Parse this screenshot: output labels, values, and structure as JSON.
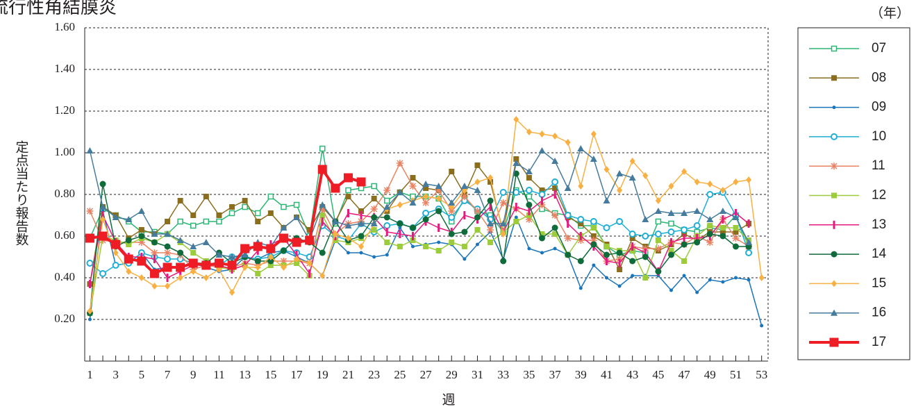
{
  "chart_data": {
    "type": "line",
    "title": "流行性角結膜炎",
    "y_label": "定点当たり報告数",
    "x_label": "週",
    "legend_title": "（年）",
    "legend": "right",
    "grid": true,
    "x": [
      1,
      2,
      3,
      4,
      5,
      6,
      7,
      8,
      9,
      10,
      11,
      12,
      13,
      14,
      15,
      16,
      17,
      18,
      19,
      20,
      21,
      22,
      23,
      24,
      25,
      26,
      27,
      28,
      29,
      30,
      31,
      32,
      33,
      34,
      35,
      36,
      37,
      38,
      39,
      40,
      41,
      42,
      43,
      44,
      45,
      46,
      47,
      48,
      49,
      50,
      51,
      52,
      53
    ],
    "xlim": [
      0.6,
      53.5
    ],
    "xticks": [
      1,
      3,
      5,
      7,
      9,
      11,
      13,
      15,
      17,
      19,
      21,
      23,
      25,
      27,
      29,
      31,
      33,
      35,
      37,
      39,
      41,
      43,
      45,
      47,
      49,
      51,
      53
    ],
    "ylim": [
      0,
      1.6
    ],
    "yticks": [
      {
        "value": 0.2,
        "label": "0.20"
      },
      {
        "value": 0.4,
        "label": "0.40"
      },
      {
        "value": 0.6,
        "label": "0.60"
      },
      {
        "value": 0.8,
        "label": "0.80"
      },
      {
        "value": 1.0,
        "label": "1.00"
      },
      {
        "value": 1.2,
        "label": "1.20"
      },
      {
        "value": 1.4,
        "label": "1.40"
      },
      {
        "value": 1.6,
        "label": "1.60"
      }
    ],
    "series": [
      {
        "name": "07",
        "color": "#2bb673",
        "marker": "square-open",
        "values": [
          0.59,
          0.73,
          0.7,
          0.67,
          0.62,
          0.62,
          0.61,
          0.67,
          0.65,
          0.67,
          0.67,
          0.71,
          0.74,
          0.71,
          0.79,
          0.74,
          0.75,
          0.6,
          1.02,
          0.66,
          0.82,
          0.83,
          0.84,
          0.77,
          0.81,
          0.79,
          0.79,
          0.78,
          0.67,
          0.78,
          0.72,
          0.7,
          0.62,
          0.82,
          0.79,
          0.73,
          0.71,
          0.7,
          0.65,
          0.65,
          0.55,
          0.51,
          0.53,
          0.52,
          0.67,
          0.66,
          0.63,
          0.62,
          0.64,
          0.63,
          0.7,
          0.55,
          null
        ]
      },
      {
        "name": "08",
        "color": "#8b6d1e",
        "marker": "square",
        "values": [
          0.37,
          0.74,
          0.7,
          0.59,
          0.63,
          0.61,
          0.67,
          0.77,
          0.7,
          0.79,
          0.7,
          0.74,
          0.77,
          0.67,
          0.71,
          0.64,
          0.69,
          0.63,
          0.74,
          0.67,
          0.79,
          0.72,
          0.78,
          0.72,
          0.81,
          0.88,
          0.83,
          0.82,
          0.91,
          0.8,
          0.94,
          0.86,
          0.62,
          0.97,
          0.88,
          0.82,
          0.83,
          0.69,
          0.66,
          0.6,
          0.56,
          0.44,
          0.59,
          0.55,
          0.53,
          0.56,
          0.61,
          0.58,
          0.62,
          0.62,
          0.62,
          0.66,
          null
        ]
      },
      {
        "name": "09",
        "color": "#1a75bb",
        "marker": "dot",
        "values": [
          0.2,
          0.72,
          0.46,
          0.47,
          0.52,
          0.44,
          0.45,
          0.45,
          0.47,
          0.45,
          0.43,
          0.44,
          0.5,
          0.49,
          0.52,
          0.53,
          0.5,
          0.47,
          0.41,
          0.58,
          0.52,
          0.52,
          0.5,
          0.51,
          0.64,
          0.55,
          0.56,
          0.57,
          0.56,
          0.49,
          0.56,
          0.62,
          0.49,
          0.69,
          0.54,
          0.52,
          0.54,
          0.51,
          0.35,
          0.46,
          0.4,
          0.36,
          0.41,
          0.41,
          0.41,
          0.34,
          0.41,
          0.33,
          0.39,
          0.38,
          0.4,
          0.39,
          0.17
        ]
      },
      {
        "name": "10",
        "color": "#1eaed6",
        "marker": "circle-open",
        "values": [
          0.47,
          0.42,
          0.46,
          0.47,
          0.52,
          0.5,
          0.49,
          0.49,
          0.47,
          0.46,
          0.46,
          0.5,
          0.5,
          0.49,
          0.5,
          0.53,
          0.52,
          0.5,
          0.65,
          0.6,
          0.58,
          0.66,
          0.62,
          0.65,
          0.66,
          0.64,
          0.71,
          0.73,
          0.69,
          0.77,
          0.73,
          0.68,
          0.81,
          0.81,
          0.82,
          0.8,
          0.86,
          0.7,
          0.68,
          0.67,
          0.64,
          0.67,
          0.61,
          0.6,
          0.61,
          0.62,
          0.63,
          0.65,
          0.8,
          0.81,
          0.7,
          0.52,
          null
        ]
      },
      {
        "name": "11",
        "color": "#e98363",
        "marker": "asterisk",
        "values": [
          0.72,
          0.58,
          0.57,
          0.57,
          0.57,
          0.52,
          0.52,
          0.51,
          0.44,
          0.46,
          0.45,
          0.45,
          0.47,
          0.46,
          0.48,
          0.48,
          0.48,
          0.47,
          0.73,
          0.61,
          0.66,
          0.67,
          0.73,
          0.82,
          0.95,
          0.84,
          0.76,
          0.82,
          0.72,
          0.79,
          0.72,
          0.63,
          0.76,
          0.73,
          0.68,
          0.75,
          0.7,
          0.59,
          0.58,
          0.58,
          0.48,
          0.49,
          0.55,
          0.54,
          0.54,
          0.57,
          0.56,
          0.6,
          0.57,
          0.68,
          0.59,
          0.55,
          null
        ]
      },
      {
        "name": "12",
        "color": "#9ccb3b",
        "marker": "square",
        "values": [
          0.23,
          0.6,
          0.58,
          0.56,
          0.59,
          0.57,
          0.61,
          0.57,
          0.52,
          0.48,
          0.45,
          0.44,
          0.46,
          0.42,
          0.46,
          0.46,
          0.47,
          0.41,
          0.7,
          0.58,
          0.57,
          0.59,
          0.63,
          0.57,
          0.55,
          0.58,
          0.55,
          0.53,
          0.57,
          0.55,
          0.63,
          0.57,
          0.62,
          0.67,
          0.7,
          0.61,
          0.61,
          0.51,
          0.6,
          0.64,
          0.55,
          0.53,
          0.53,
          0.4,
          0.58,
          0.53,
          0.48,
          0.6,
          0.65,
          0.64,
          0.64,
          0.58,
          null
        ]
      },
      {
        "name": "13",
        "color": "#e6197e",
        "marker": "vtick",
        "values": [
          0.37,
          0.7,
          0.57,
          0.5,
          0.5,
          0.49,
          0.4,
          0.43,
          0.46,
          0.46,
          0.46,
          0.44,
          0.46,
          0.53,
          0.56,
          0.59,
          0.51,
          0.42,
          0.67,
          0.6,
          0.71,
          0.7,
          0.69,
          0.62,
          0.61,
          0.6,
          0.67,
          0.64,
          0.62,
          0.7,
          0.68,
          0.74,
          0.62,
          0.74,
          0.72,
          0.77,
          0.8,
          0.66,
          0.6,
          0.55,
          0.48,
          0.47,
          0.55,
          0.52,
          0.43,
          0.57,
          0.59,
          0.59,
          0.6,
          0.68,
          0.71,
          0.66,
          null
        ]
      },
      {
        "name": "14",
        "color": "#0f6b3a",
        "marker": "dot-big",
        "values": [
          0.23,
          0.85,
          0.55,
          0.58,
          0.6,
          0.57,
          0.55,
          0.52,
          0.47,
          0.47,
          0.52,
          0.47,
          0.5,
          0.48,
          0.48,
          0.53,
          0.59,
          0.57,
          0.52,
          0.67,
          0.58,
          0.6,
          0.69,
          0.69,
          0.66,
          0.64,
          0.68,
          0.72,
          0.61,
          0.62,
          0.69,
          0.77,
          0.48,
          0.9,
          0.75,
          0.59,
          0.64,
          0.51,
          0.48,
          0.56,
          0.51,
          0.52,
          0.48,
          0.5,
          0.43,
          0.51,
          0.56,
          0.57,
          0.61,
          0.6,
          0.55,
          0.55,
          null
        ]
      },
      {
        "name": "15",
        "color": "#f8b043",
        "marker": "diamond",
        "values": [
          0.24,
          0.68,
          0.52,
          0.43,
          0.4,
          0.36,
          0.36,
          0.4,
          0.43,
          0.4,
          0.44,
          0.33,
          0.45,
          0.45,
          0.5,
          0.45,
          0.49,
          0.47,
          0.41,
          0.61,
          0.59,
          0.55,
          0.66,
          0.73,
          0.75,
          0.77,
          0.79,
          0.78,
          0.74,
          0.82,
          0.86,
          0.88,
          0.61,
          1.16,
          1.1,
          1.09,
          1.08,
          1.05,
          0.84,
          1.09,
          0.92,
          0.82,
          0.96,
          0.89,
          0.77,
          0.84,
          0.91,
          0.86,
          0.85,
          0.82,
          0.86,
          0.87,
          0.4
        ]
      },
      {
        "name": "16",
        "color": "#457b9d",
        "marker": "triangle",
        "values": [
          1.01,
          0.74,
          0.69,
          0.68,
          0.72,
          0.61,
          0.61,
          0.58,
          0.55,
          0.57,
          0.51,
          0.5,
          0.51,
          0.57,
          0.55,
          0.64,
          0.69,
          0.58,
          0.75,
          0.67,
          0.65,
          0.66,
          0.66,
          0.74,
          0.81,
          0.76,
          0.85,
          0.84,
          0.76,
          0.84,
          0.82,
          0.66,
          0.66,
          0.95,
          0.91,
          1.01,
          0.96,
          0.83,
          1.02,
          0.97,
          0.77,
          0.9,
          0.88,
          0.68,
          0.72,
          0.71,
          0.71,
          0.72,
          0.68,
          0.72,
          0.69,
          0.57,
          null
        ]
      },
      {
        "name": "17",
        "color": "#ee1c25",
        "marker": "square-big",
        "values": [
          0.59,
          0.6,
          0.56,
          0.49,
          0.48,
          0.42,
          0.45,
          0.45,
          0.47,
          0.46,
          0.47,
          0.46,
          0.54,
          0.55,
          0.54,
          0.59,
          0.57,
          0.58,
          0.92,
          0.83,
          0.88,
          0.86,
          null,
          null,
          null,
          null,
          null,
          null,
          null,
          null,
          null,
          null,
          null,
          null,
          null,
          null,
          null,
          null,
          null,
          null,
          null,
          null,
          null,
          null,
          null,
          null,
          null,
          null,
          null,
          null,
          null,
          null,
          null
        ]
      }
    ]
  }
}
